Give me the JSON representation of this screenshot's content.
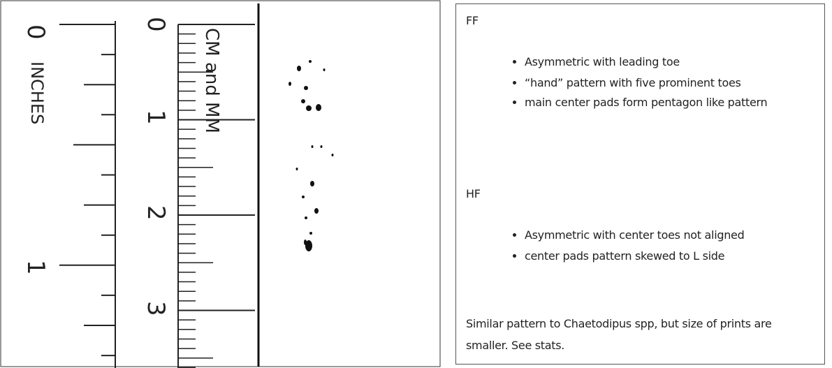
{
  "ruler": {
    "inch_marks": [
      "0",
      "1"
    ],
    "inches_label": "INCHES",
    "cm_marks": [
      "0",
      "1",
      "2",
      "3"
    ],
    "cm_label": "CM and MM"
  },
  "notes": {
    "sections": [
      {
        "heading": "FF",
        "bullets": [
          "Asymmetric with leading toe",
          "“hand” pattern with five prominent toes",
          "main center pads form pentagon like pattern"
        ]
      },
      {
        "heading": "HF",
        "bullets": [
          "Asymmetric with center toes not aligned",
          "center pads pattern skewed to L side"
        ]
      }
    ],
    "summary": "Similar pattern to Chaetodipus spp, but size of prints are smaller. See stats."
  }
}
